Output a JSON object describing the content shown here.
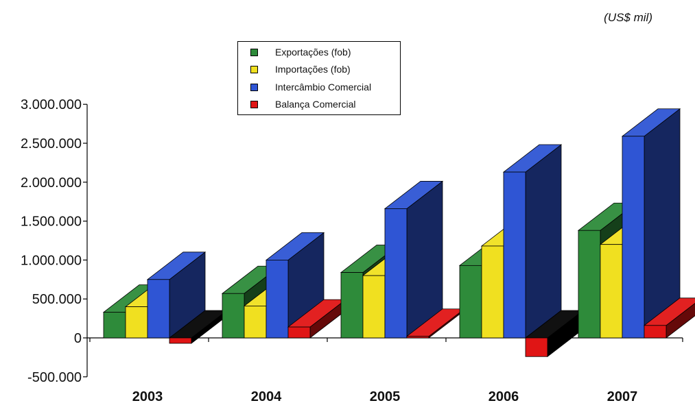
{
  "unit_label": "(US$ mil)",
  "chart_data": {
    "type": "bar",
    "categories": [
      "2003",
      "2004",
      "2005",
      "2006",
      "2007"
    ],
    "ylim": [
      -500000,
      3000000
    ],
    "yticks": [
      "3.000.000",
      "2.500.000",
      "2.000.000",
      "1.500.000",
      "1.000.000",
      "500.000",
      "0",
      "-500.000"
    ],
    "ytick_values": [
      3000000,
      2500000,
      2000000,
      1500000,
      1000000,
      500000,
      0,
      -500000
    ],
    "grid": false,
    "legend_position": "top-center",
    "series": [
      {
        "name": "Exportações (fob)",
        "color": "#2e8b3a",
        "values": [
          330000,
          570000,
          840000,
          930000,
          1380000
        ]
      },
      {
        "name": "Importações (fob)",
        "color": "#f0e020",
        "values": [
          400000,
          410000,
          800000,
          1180000,
          1200000
        ]
      },
      {
        "name": "Intercâmbio Comercial",
        "color": "#2f55d4",
        "values": [
          750000,
          1000000,
          1660000,
          2130000,
          2590000
        ]
      },
      {
        "name": "Balança Comercial",
        "color": "#e01515",
        "values": [
          -70000,
          140000,
          20000,
          -240000,
          160000
        ]
      }
    ]
  }
}
